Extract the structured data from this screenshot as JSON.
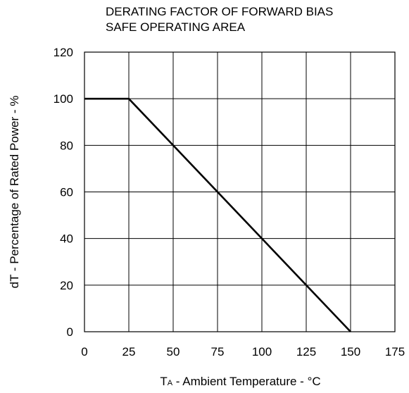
{
  "chart_data": {
    "type": "line",
    "title_lines": [
      "DERATING FACTOR OF FORWARD BIAS",
      "SAFE OPERATING AREA"
    ],
    "xlabel": {
      "main": "T",
      "subscript": "A",
      "rest": " - Ambient Temperature - °C"
    },
    "ylabel": "dT - Percentage of Rated Power - %",
    "xlim": [
      0,
      175
    ],
    "ylim": [
      0,
      120
    ],
    "x_ticks": [
      "0",
      "25",
      "50",
      "75",
      "100",
      "125",
      "150",
      "175"
    ],
    "y_ticks": [
      "0",
      "20",
      "40",
      "60",
      "80",
      "100",
      "120"
    ],
    "grid": true,
    "series": [
      {
        "x": [
          0,
          25,
          150
        ],
        "y": [
          100,
          100,
          0
        ]
      }
    ]
  }
}
